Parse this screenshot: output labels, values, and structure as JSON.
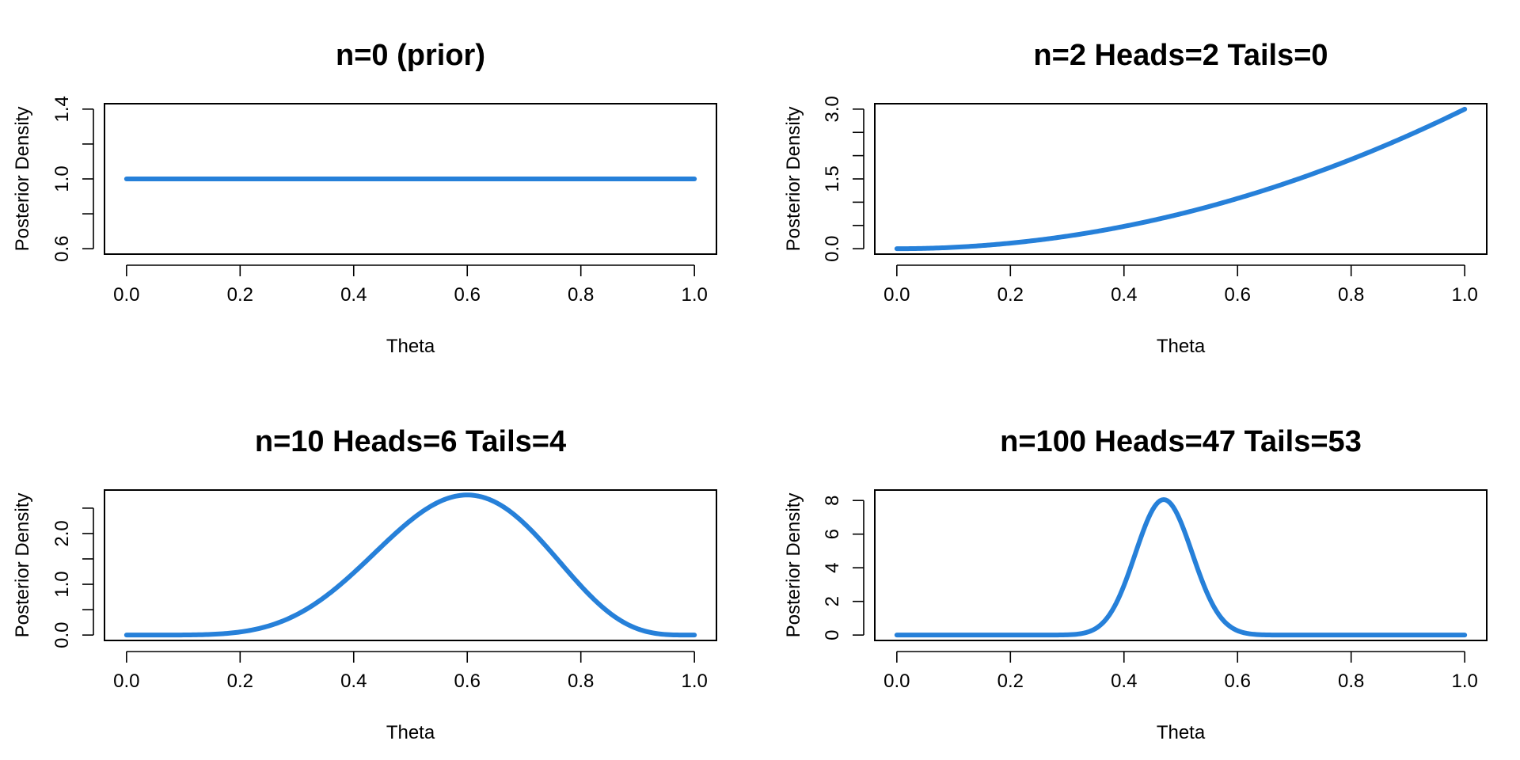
{
  "figure": {
    "background": "#ffffff",
    "line_color": "#2680d9",
    "axis_color": "#000000"
  },
  "chart_data": [
    {
      "type": "line",
      "title": "n=0 (prior)",
      "xlabel": "Theta",
      "ylabel": "Posterior Density",
      "xlim": [
        0,
        1
      ],
      "ylim": [
        0.6,
        1.4
      ],
      "x_ticks": [
        "0.0",
        "0.2",
        "0.4",
        "0.6",
        "0.8",
        "1.0"
      ],
      "y_ticks": [
        0.6,
        0.8,
        1.0,
        1.2,
        1.4
      ],
      "y_tick_labels": [
        "0.6",
        "",
        "1.0",
        "",
        "1.4"
      ],
      "grid": false,
      "series": [
        {
          "function": "beta_density",
          "alpha": 1,
          "beta": 1,
          "x": [
            0.0,
            0.2,
            0.4,
            0.6,
            0.8,
            1.0
          ],
          "y": [
            1.0,
            1.0,
            1.0,
            1.0,
            1.0,
            1.0
          ]
        }
      ]
    },
    {
      "type": "line",
      "title": "n=2     Heads=2     Tails=0",
      "xlabel": "Theta",
      "ylabel": "Posterior Density",
      "xlim": [
        0,
        1
      ],
      "ylim": [
        0,
        3
      ],
      "x_ticks": [
        "0.0",
        "0.2",
        "0.4",
        "0.6",
        "0.8",
        "1.0"
      ],
      "y_ticks": [
        0.0,
        0.5,
        1.0,
        1.5,
        2.0,
        2.5,
        3.0
      ],
      "y_tick_labels": [
        "0.0",
        "",
        "",
        "1.5",
        "",
        "",
        "3.0"
      ],
      "grid": false,
      "series": [
        {
          "function": "beta_density",
          "alpha": 3,
          "beta": 1,
          "x": [
            0.0,
            0.2,
            0.4,
            0.6,
            0.8,
            1.0
          ],
          "y": [
            0.0,
            0.12,
            0.48,
            1.08,
            1.92,
            3.0
          ]
        }
      ]
    },
    {
      "type": "line",
      "title": "n=10     Heads=6     Tails=4",
      "xlabel": "Theta",
      "ylabel": "Posterior Density",
      "xlim": [
        0,
        1
      ],
      "ylim": [
        0,
        2.75
      ],
      "x_ticks": [
        "0.0",
        "0.2",
        "0.4",
        "0.6",
        "0.8",
        "1.0"
      ],
      "y_ticks": [
        0.0,
        0.5,
        1.0,
        1.5,
        2.0,
        2.5
      ],
      "y_tick_labels": [
        "0.0",
        "",
        "1.0",
        "",
        "2.0",
        ""
      ],
      "grid": false,
      "series": [
        {
          "function": "beta_density",
          "alpha": 7,
          "beta": 5,
          "x": [
            0.0,
            0.2,
            0.4,
            0.6,
            0.8,
            1.0
          ],
          "y": [
            0.0,
            0.07,
            1.25,
            2.68,
            1.31,
            0.0
          ]
        }
      ]
    },
    {
      "type": "line",
      "title": "n=100     Heads=47     Tails=53",
      "xlabel": "Theta",
      "ylabel": "Posterior Density",
      "xlim": [
        0,
        1
      ],
      "ylim": [
        0,
        8.3
      ],
      "x_ticks": [
        "0.0",
        "0.2",
        "0.4",
        "0.6",
        "0.8",
        "1.0"
      ],
      "y_ticks": [
        0,
        2,
        4,
        6,
        8
      ],
      "y_tick_labels": [
        "0",
        "2",
        "4",
        "6",
        "8"
      ],
      "grid": false,
      "series": [
        {
          "function": "beta_density",
          "alpha": 48,
          "beta": 54,
          "x": [
            0.3,
            0.4,
            0.47,
            0.55,
            0.6,
            0.7
          ],
          "y": [
            0.02,
            2.9,
            8.0,
            3.2,
            0.21,
            0.0
          ]
        }
      ]
    }
  ]
}
